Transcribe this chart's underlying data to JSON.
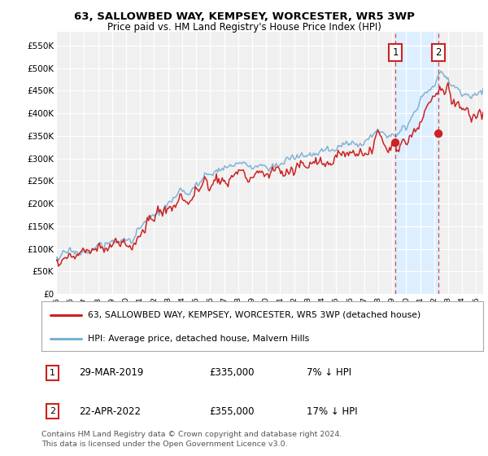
{
  "title": "63, SALLOWBED WAY, KEMPSEY, WORCESTER, WR5 3WP",
  "subtitle": "Price paid vs. HM Land Registry's House Price Index (HPI)",
  "ylabel_ticks": [
    "£0",
    "£50K",
    "£100K",
    "£150K",
    "£200K",
    "£250K",
    "£300K",
    "£350K",
    "£400K",
    "£450K",
    "£500K",
    "£550K"
  ],
  "ytick_values": [
    0,
    50000,
    100000,
    150000,
    200000,
    250000,
    300000,
    350000,
    400000,
    450000,
    500000,
    550000
  ],
  "ylim": [
    0,
    580000
  ],
  "xlim_start": 1995.0,
  "xlim_end": 2025.5,
  "xtick_years": [
    1995,
    1996,
    1997,
    1998,
    1999,
    2000,
    2001,
    2002,
    2003,
    2004,
    2005,
    2006,
    2007,
    2008,
    2009,
    2010,
    2011,
    2012,
    2013,
    2014,
    2015,
    2016,
    2017,
    2018,
    2019,
    2020,
    2021,
    2022,
    2023,
    2024,
    2025
  ],
  "hpi_color": "#7ab0d4",
  "price_color": "#cc2222",
  "marker1_x": 2019.23,
  "marker1_y": 335000,
  "marker1_label": "1",
  "marker2_x": 2022.31,
  "marker2_y": 355000,
  "marker2_label": "2",
  "shade_color": "#ddeeff",
  "legend_line1": "63, SALLOWBED WAY, KEMPSEY, WORCESTER, WR5 3WP (detached house)",
  "legend_line2": "HPI: Average price, detached house, Malvern Hills",
  "note1_num": "1",
  "note1_date": "29-MAR-2019",
  "note1_price": "£335,000",
  "note1_hpi": "7% ↓ HPI",
  "note2_num": "2",
  "note2_date": "22-APR-2022",
  "note2_price": "£355,000",
  "note2_hpi": "17% ↓ HPI",
  "footer": "Contains HM Land Registry data © Crown copyright and database right 2024.\nThis data is licensed under the Open Government Licence v3.0.",
  "background_color": "#ffffff",
  "plot_bg_color": "#f0f0f0"
}
